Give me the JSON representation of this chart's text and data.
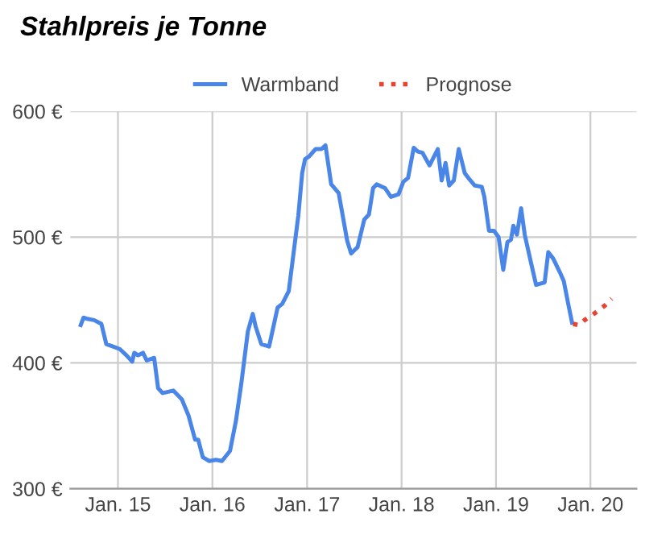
{
  "chart_data": {
    "type": "line",
    "title": "Stahlpreis je Tonne",
    "legend": "top",
    "grid": true,
    "xlim": [
      "2014-07-01",
      "2020-06-27"
    ],
    "ylim": [
      300,
      600
    ],
    "xticks": [
      {
        "value": "2015-01-01",
        "label": "Jan. 15"
      },
      {
        "value": "2016-01-01",
        "label": "Jan. 16"
      },
      {
        "value": "2017-01-01",
        "label": "Jan. 17"
      },
      {
        "value": "2018-01-01",
        "label": "Jan. 18"
      },
      {
        "value": "2019-01-01",
        "label": "Jan. 19"
      },
      {
        "value": "2020-01-01",
        "label": "Jan. 20"
      }
    ],
    "yticks": [
      {
        "value": 300,
        "label": "300 €"
      },
      {
        "value": 400,
        "label": "400 €"
      },
      {
        "value": 500,
        "label": "500 €"
      },
      {
        "value": 600,
        "label": "600 €"
      }
    ],
    "series": [
      {
        "name": "Warmband",
        "color": "#4a86e8",
        "line_style": "solid",
        "x": [
          "2014-08-10",
          "2014-08-21",
          "2014-09-05",
          "2014-10-01",
          "2014-10-29",
          "2014-11-17",
          "2014-12-13",
          "2015-01-08",
          "2015-02-03",
          "2015-02-25",
          "2015-03-05",
          "2015-03-20",
          "2015-04-08",
          "2015-04-22",
          "2015-05-21",
          "2015-06-05",
          "2015-06-23",
          "2015-08-03",
          "2015-09-05",
          "2015-10-01",
          "2015-10-26",
          "2015-11-07",
          "2015-11-25",
          "2015-12-20",
          "2016-01-15",
          "2016-02-07",
          "2016-03-09",
          "2016-04-01",
          "2016-04-22",
          "2016-05-17",
          "2016-06-05",
          "2016-06-16",
          "2016-07-08",
          "2016-08-07",
          "2016-09-09",
          "2016-09-27",
          "2016-10-22",
          "2016-11-07",
          "2016-11-28",
          "2016-12-13",
          "2016-12-24",
          "2017-01-08",
          "2017-02-03",
          "2017-02-25",
          "2017-03-13",
          "2017-04-04",
          "2017-05-03",
          "2017-06-05",
          "2017-06-20",
          "2017-07-15",
          "2017-08-10",
          "2017-08-28",
          "2017-09-13",
          "2017-09-27",
          "2017-10-29",
          "2017-11-21",
          "2017-12-20",
          "2018-01-08",
          "2018-01-26",
          "2018-02-17",
          "2018-03-05",
          "2018-03-23",
          "2018-04-19",
          "2018-05-21",
          "2018-06-05",
          "2018-06-20",
          "2018-07-04",
          "2018-07-22",
          "2018-08-10",
          "2018-09-02",
          "2018-09-20",
          "2018-10-11",
          "2018-11-07",
          "2018-11-17",
          "2018-12-05",
          "2018-12-24",
          "2019-01-11",
          "2019-01-29",
          "2019-02-14",
          "2019-02-28",
          "2019-03-09",
          "2019-03-23",
          "2019-04-08",
          "2019-04-22",
          "2019-05-17",
          "2019-06-05",
          "2019-07-08",
          "2019-07-22",
          "2019-08-10",
          "2019-09-05",
          "2019-09-20",
          "2019-10-08",
          "2019-10-22"
        ],
        "values": [
          430,
          436,
          435,
          434,
          431,
          415,
          413,
          411,
          406,
          401,
          408,
          406,
          408,
          402,
          404,
          380,
          376,
          378,
          371,
          358,
          339,
          339,
          325,
          322,
          323,
          322,
          330,
          354,
          384,
          425,
          439,
          429,
          415,
          413,
          444,
          447,
          457,
          483,
          517,
          551,
          562,
          564,
          570,
          570,
          573,
          542,
          535,
          497,
          487,
          492,
          514,
          518,
          539,
          542,
          539,
          532,
          534,
          544,
          547,
          571,
          568,
          567,
          557,
          570,
          545,
          559,
          541,
          545,
          570,
          551,
          546,
          541,
          540,
          532,
          505,
          505,
          500,
          474,
          496,
          498,
          509,
          502,
          523,
          502,
          479,
          462,
          464,
          488,
          483,
          472,
          465,
          446,
          432
        ]
      },
      {
        "name": "Prognose",
        "color": "#e8432e",
        "line_style": "dotted",
        "x": [
          "2019-10-26",
          "2019-11-17",
          "2019-12-09",
          "2020-01-08",
          "2020-02-03",
          "2020-02-28",
          "2020-03-23"
        ],
        "values": [
          431,
          430,
          434,
          438,
          442,
          446,
          451
        ]
      }
    ]
  }
}
